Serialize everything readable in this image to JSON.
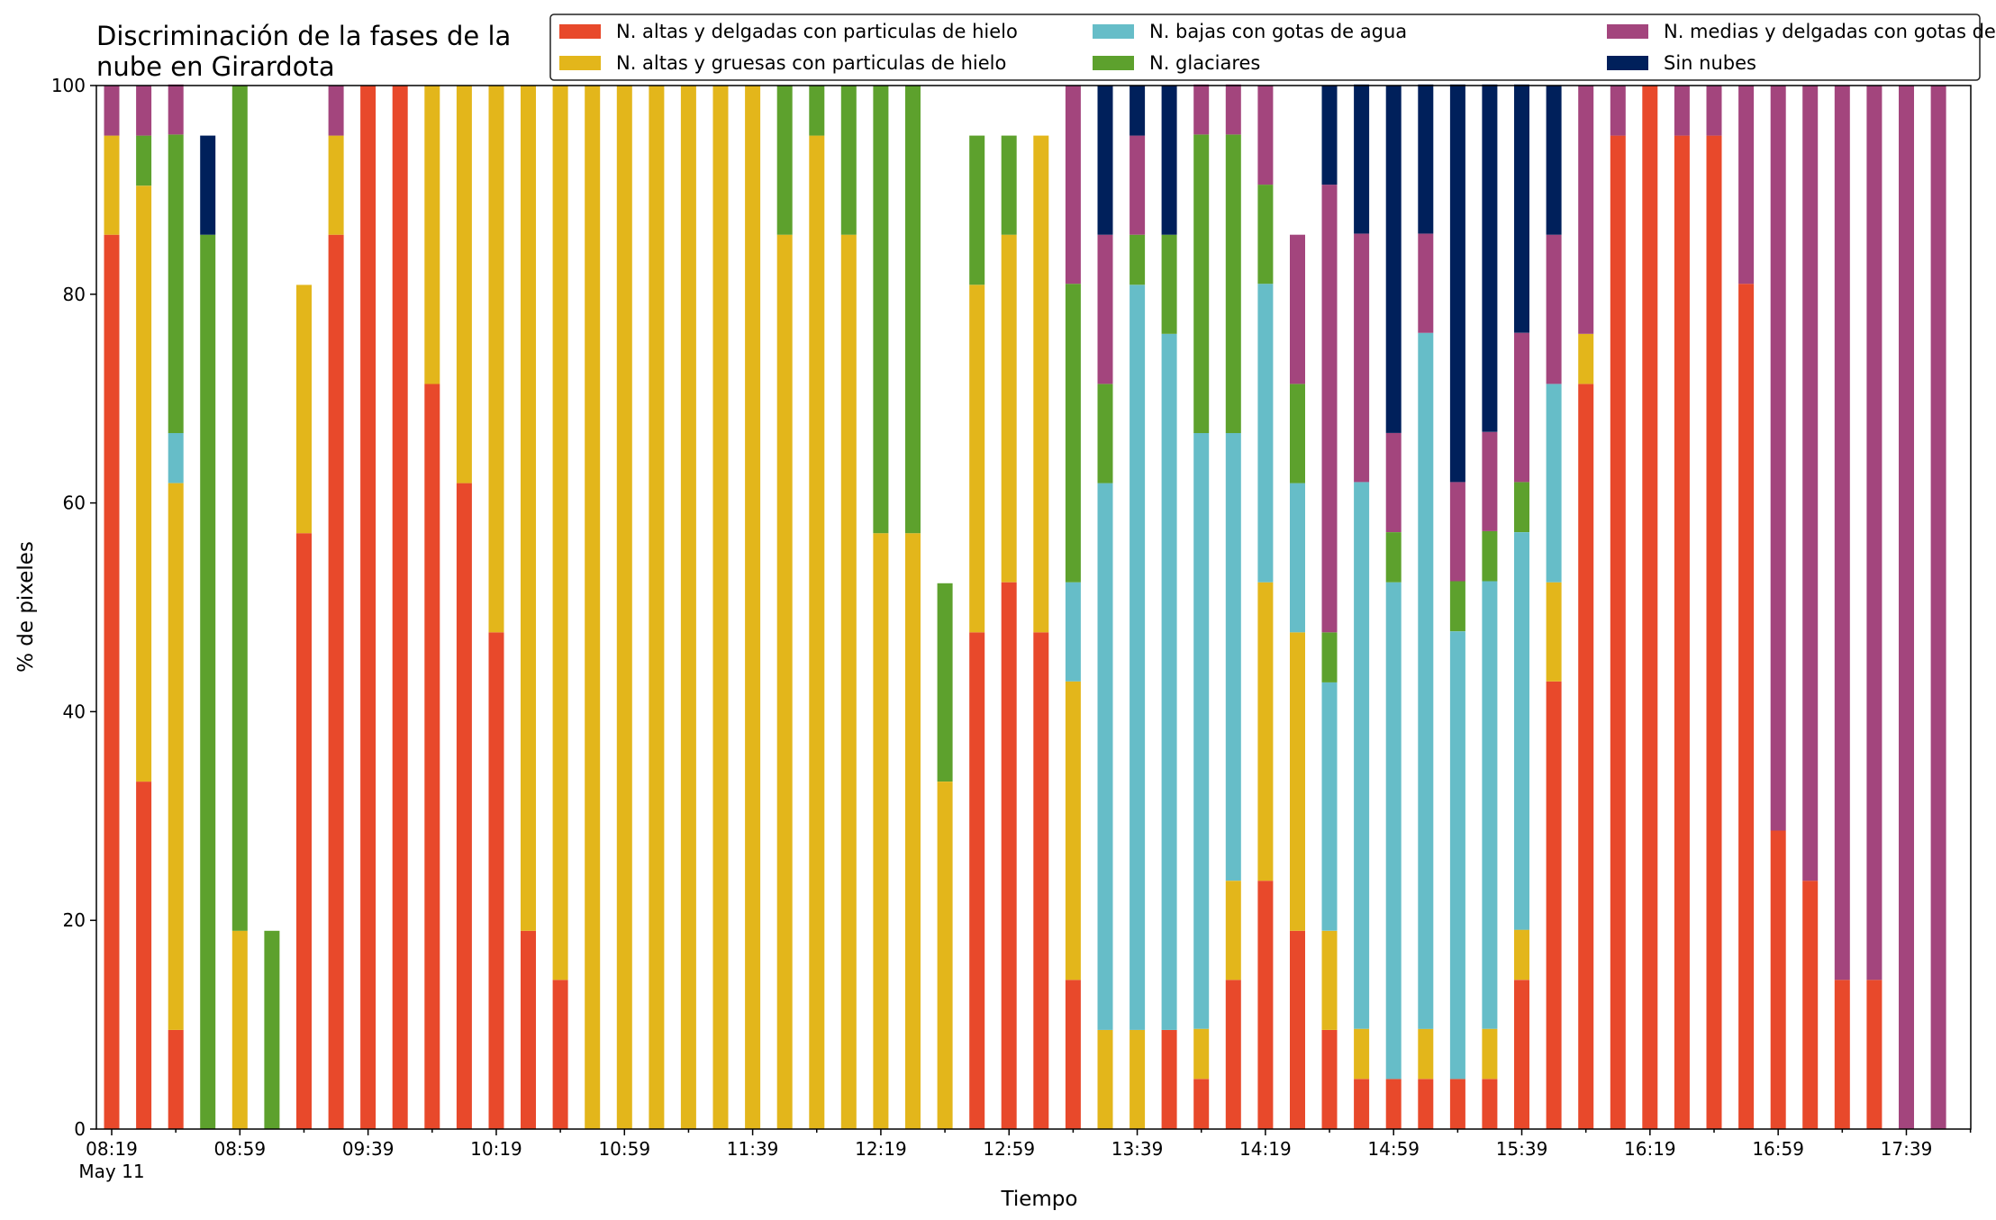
{
  "chart_data": {
    "type": "bar",
    "stacked": true,
    "title_lines": [
      "Discriminación de la fases de la",
      "nube en Girardota"
    ],
    "xlabel": "Tiempo",
    "ylabel": "% de pixeles",
    "ylim": [
      0,
      100
    ],
    "yticks": [
      "0",
      "20",
      "40",
      "60",
      "80",
      "100"
    ],
    "xtick_labels": [
      "08:19",
      "08:59",
      "09:39",
      "10:19",
      "10:59",
      "11:39",
      "12:19",
      "12:59",
      "13:39",
      "14:19",
      "14:59",
      "15:39",
      "16:19",
      "16:59",
      "17:39"
    ],
    "date_label": "May 11",
    "legend_position": "top-right",
    "grid": false,
    "series": [
      {
        "name": "N. altas y delgadas con particulas de hielo",
        "color": "#e8492b",
        "values": [
          85.7,
          33.3,
          9.5,
          0,
          0,
          0,
          57.1,
          85.7,
          100,
          100,
          71.4,
          61.9,
          47.6,
          19.0,
          14.3,
          0,
          0,
          0,
          0,
          0,
          0,
          0,
          0,
          0,
          0,
          0,
          0,
          47.6,
          52.4,
          47.6,
          14.3,
          0,
          0,
          9.5,
          4.8,
          14.3,
          23.8,
          19.0,
          9.5,
          4.8,
          4.8,
          4.8,
          4.8,
          4.8,
          14.3,
          42.9,
          71.4,
          95.2,
          100,
          95.2,
          95.2,
          81.0,
          28.6,
          23.8,
          14.3,
          14.3,
          0,
          0
        ]
      },
      {
        "name": "N. altas y gruesas con particulas de hielo",
        "color": "#e3b61b",
        "values": [
          9.5,
          57.1,
          52.4,
          0,
          19.0,
          0,
          23.8,
          9.5,
          0,
          0,
          28.6,
          38.1,
          52.4,
          81.0,
          85.7,
          100,
          100,
          100,
          100,
          100,
          100,
          85.7,
          95.2,
          85.7,
          57.1,
          57.1,
          33.3,
          33.3,
          33.3,
          47.6,
          28.6,
          9.5,
          9.5,
          0,
          4.8,
          9.5,
          28.6,
          28.6,
          9.5,
          4.8,
          0,
          4.8,
          0,
          4.8,
          4.8,
          9.5,
          4.8,
          0,
          0,
          0,
          0,
          0,
          0,
          0,
          0,
          0,
          0,
          0
        ]
      },
      {
        "name": "N. bajas con gotas de agua",
        "color": "#66bdc8",
        "values": [
          0,
          0,
          4.8,
          0,
          0,
          0,
          0,
          0,
          0,
          0,
          0,
          0,
          0,
          0,
          0,
          0,
          0,
          0,
          0,
          0,
          0,
          0,
          0,
          0,
          0,
          0,
          0,
          0,
          0,
          0,
          9.5,
          52.4,
          71.4,
          66.7,
          57.1,
          42.9,
          28.6,
          14.3,
          23.8,
          52.4,
          47.6,
          66.7,
          42.9,
          42.9,
          38.1,
          19.0,
          0,
          0,
          0,
          0,
          0,
          0,
          0,
          0,
          0,
          0,
          0,
          0
        ]
      },
      {
        "name": "N. glaciares",
        "color": "#5da12d",
        "values": [
          0,
          4.8,
          28.6,
          85.7,
          81.0,
          19.0,
          0,
          0,
          0,
          0,
          0,
          0,
          0,
          0,
          0,
          0,
          0,
          0,
          0,
          0,
          0,
          14.3,
          4.8,
          14.3,
          42.9,
          42.9,
          19.0,
          14.3,
          9.5,
          0,
          28.6,
          9.5,
          4.8,
          9.5,
          28.6,
          28.6,
          9.5,
          9.5,
          4.8,
          0,
          4.8,
          0,
          4.8,
          4.8,
          4.8,
          0,
          0,
          0,
          0,
          0,
          0,
          0,
          0,
          0,
          0,
          0,
          0,
          0
        ]
      },
      {
        "name": "N. medias y delgadas con gotas de agua",
        "color": "#a3457d",
        "values": [
          4.8,
          4.8,
          4.8,
          0,
          0,
          0,
          0,
          4.8,
          0,
          0,
          0,
          0,
          0,
          0,
          0,
          0,
          0,
          0,
          0,
          0,
          0,
          0,
          0,
          0,
          0,
          0,
          0,
          0,
          0,
          0,
          19.0,
          14.3,
          9.5,
          0,
          4.8,
          4.8,
          9.5,
          14.3,
          42.9,
          23.8,
          9.5,
          9.5,
          9.5,
          9.5,
          14.3,
          14.3,
          23.8,
          4.8,
          0,
          4.8,
          4.8,
          19.0,
          71.4,
          76.2,
          85.7,
          85.7,
          100,
          100
        ]
      },
      {
        "name": "Sin nubes",
        "color": "#00205b",
        "values": [
          0,
          0,
          0,
          9.5,
          0,
          0,
          0,
          0,
          0,
          0,
          0,
          0,
          0,
          0,
          0,
          0,
          0,
          0,
          0,
          0,
          0,
          0,
          0,
          0,
          0,
          0,
          0,
          0,
          0,
          0,
          0,
          14.3,
          4.8,
          14.3,
          0,
          0,
          0,
          0,
          9.5,
          14.3,
          33.3,
          14.3,
          38.1,
          33.3,
          23.8,
          14.3,
          0,
          0,
          0,
          0,
          0,
          0,
          0,
          0,
          0,
          0,
          0,
          0
        ]
      }
    ]
  }
}
